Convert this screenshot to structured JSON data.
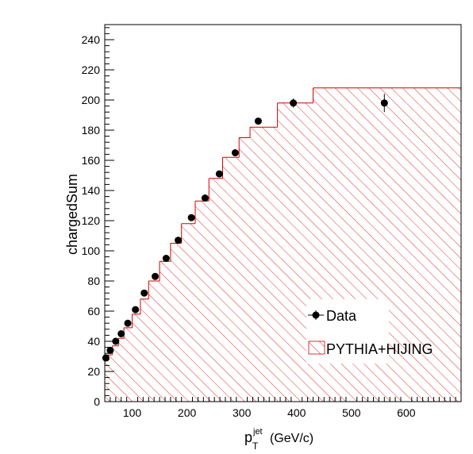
{
  "chart_data": {
    "type": "scatter",
    "xlabel": {
      "base": "p",
      "superscript": "jet",
      "subscript": "T",
      "unit": "(GeV/c)"
    },
    "ylabel": "chargedSum",
    "xlim": [
      50,
      700
    ],
    "ylim": [
      0,
      250
    ],
    "x_ticks": [
      100,
      200,
      300,
      400,
      500,
      600
    ],
    "y_ticks": [
      0,
      20,
      40,
      60,
      80,
      100,
      120,
      140,
      160,
      180,
      200,
      220,
      240
    ],
    "grid": false,
    "legend": {
      "placement": "bottom-right"
    },
    "series": [
      {
        "name": "Data",
        "kind": "points",
        "color": "#000000",
        "x": [
          52,
          60,
          70,
          80,
          92,
          106,
          122,
          142,
          162,
          184,
          208,
          233,
          259,
          288,
          330,
          394,
          560
        ],
        "y": [
          29,
          34,
          40,
          45,
          52,
          61,
          72,
          83,
          95,
          107,
          122,
          135,
          151,
          165,
          186,
          198,
          198
        ],
        "err": [
          0.5,
          0.5,
          0.5,
          0.5,
          0.5,
          0.5,
          0.5,
          0.5,
          0.5,
          0.6,
          0.7,
          0.8,
          1,
          1,
          1.2,
          3,
          6
        ]
      },
      {
        "name": "PYTHIA+HIJING",
        "kind": "hatched-histogram",
        "color": "#d40000",
        "edges": [
          50,
          56,
          64,
          75,
          85,
          100,
          115,
          130,
          150,
          170,
          190,
          215,
          240,
          265,
          295,
          315,
          365,
          430,
          700
        ],
        "values": [
          27,
          31,
          37,
          42,
          49,
          58,
          68,
          80,
          93,
          105,
          118,
          133,
          148,
          162,
          175,
          182,
          198,
          208
        ]
      }
    ]
  }
}
